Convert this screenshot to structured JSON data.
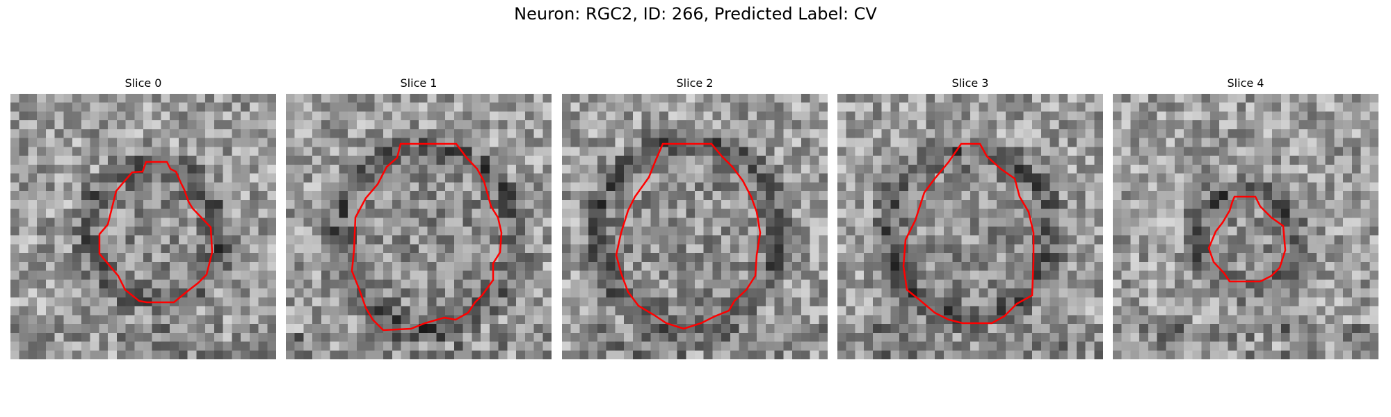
{
  "figure": {
    "title": "Neuron: RGC2, ID: 266, Predicted Label: CV",
    "contour_color": "#ff0000"
  },
  "panels": [
    {
      "title": "Slice 0"
    },
    {
      "title": "Slice 1"
    },
    {
      "title": "Slice 2"
    },
    {
      "title": "Slice 3"
    },
    {
      "title": "Slice 4"
    }
  ]
}
